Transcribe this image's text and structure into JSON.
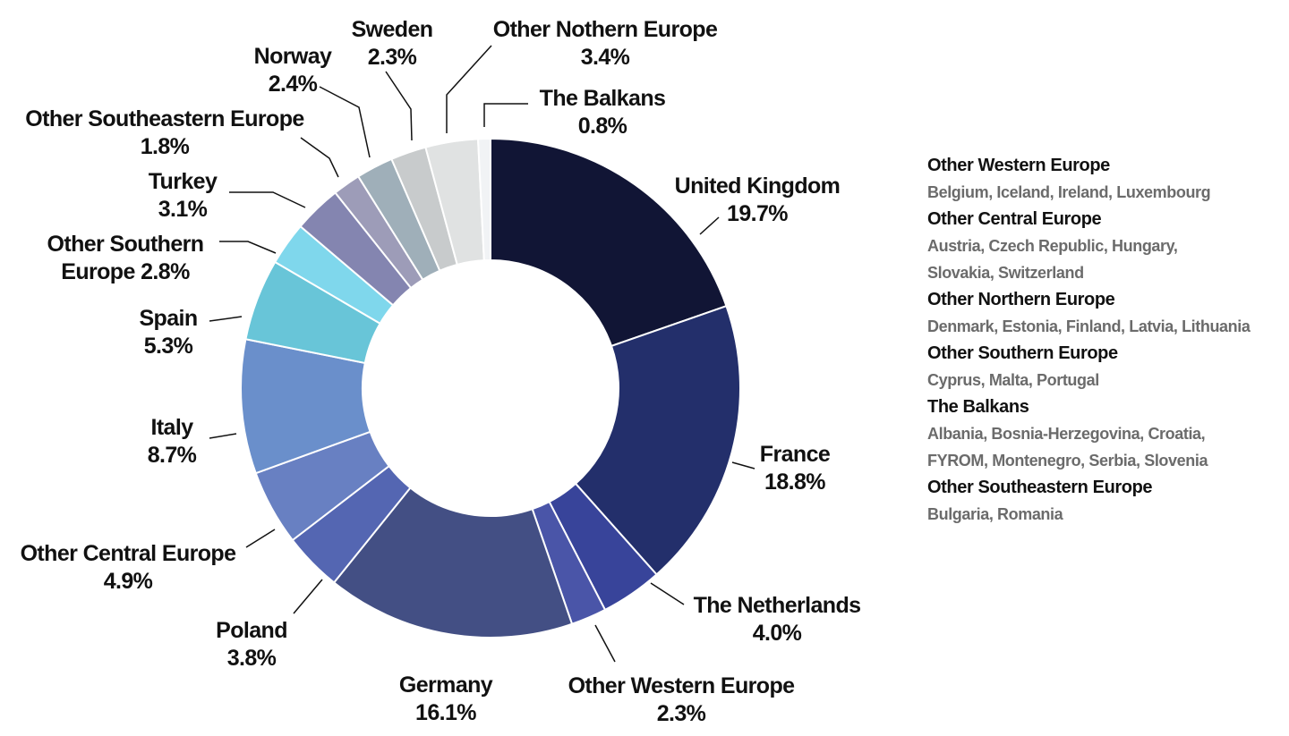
{
  "chart_data": {
    "type": "pie",
    "donut": true,
    "unit": "%",
    "slices": [
      {
        "name": "United Kingdom",
        "value": 19.7,
        "label": [
          "United Kingdom",
          "19.7%"
        ],
        "color": "#111535"
      },
      {
        "name": "France",
        "value": 18.8,
        "label": [
          "France",
          "18.8%"
        ],
        "color": "#232f6b"
      },
      {
        "name": "The Netherlands",
        "value": 4.0,
        "label": [
          "The Netherlands",
          "4.0%"
        ],
        "color": "#38449a"
      },
      {
        "name": "Other Western Europe",
        "value": 2.3,
        "label": [
          "Other Western Europe",
          "2.3%"
        ],
        "color": "#4a55a8"
      },
      {
        "name": "Germany",
        "value": 16.1,
        "label": [
          "Germany",
          "16.1%"
        ],
        "color": "#434f84"
      },
      {
        "name": "Poland",
        "value": 3.8,
        "label": [
          "Poland",
          "3.8%"
        ],
        "color": "#5466b2"
      },
      {
        "name": "Other Central Europe",
        "value": 4.9,
        "label": [
          "Other Central Europe",
          "4.9%"
        ],
        "color": "#6880c2"
      },
      {
        "name": "Italy",
        "value": 8.7,
        "label": [
          "Italy",
          "8.7%"
        ],
        "color": "#6a8fcb"
      },
      {
        "name": "Spain",
        "value": 5.3,
        "label": [
          "Spain",
          "5.3%"
        ],
        "color": "#68c5d8"
      },
      {
        "name": "Other Southern Europe",
        "value": 2.8,
        "label": [
          "Other Southern",
          "Europe 2.8%"
        ],
        "color": "#7fd7ec"
      },
      {
        "name": "Turkey",
        "value": 3.1,
        "label": [
          "Turkey",
          "3.1%"
        ],
        "color": "#8485b0"
      },
      {
        "name": "Other Southeastern Europe",
        "value": 1.8,
        "label": [
          "Other Southeastern Europe",
          "1.8%"
        ],
        "color": "#9d9cb8"
      },
      {
        "name": "Norway",
        "value": 2.4,
        "label": [
          "Norway",
          "2.4%"
        ],
        "color": "#9fafb9"
      },
      {
        "name": "Sweden",
        "value": 2.3,
        "label": [
          "Sweden",
          "2.3%"
        ],
        "color": "#c8cbcc"
      },
      {
        "name": "Other Nothern Europe",
        "value": 3.4,
        "label": [
          "Other Nothern Europe",
          "3.4%"
        ],
        "color": "#e0e2e2"
      },
      {
        "name": "The Balkans",
        "value": 0.8,
        "label": [
          "The Balkans",
          "0.8%"
        ],
        "color": "#f1f3f5"
      }
    ],
    "legend": [
      {
        "region": "Other Western Europe",
        "countries": [
          "Belgium, Iceland, Ireland, Luxembourg"
        ]
      },
      {
        "region": "Other Central Europe",
        "countries": [
          "Austria, Czech Republic, Hungary,",
          "Slovakia, Switzerland"
        ]
      },
      {
        "region": "Other Northern Europe",
        "countries": [
          "Denmark, Estonia, Finland, Latvia, Lithuania"
        ]
      },
      {
        "region": "Other Southern Europe",
        "countries": [
          "Cyprus, Malta, Portugal"
        ]
      },
      {
        "region": "The Balkans",
        "countries": [
          "Albania, Bosnia-Herzegovina, Croatia,",
          "FYROM, Montenegro, Serbia, Slovenia"
        ]
      },
      {
        "region": "Other Southeastern Europe",
        "countries": [
          "Bulgaria, Romania"
        ]
      }
    ]
  }
}
